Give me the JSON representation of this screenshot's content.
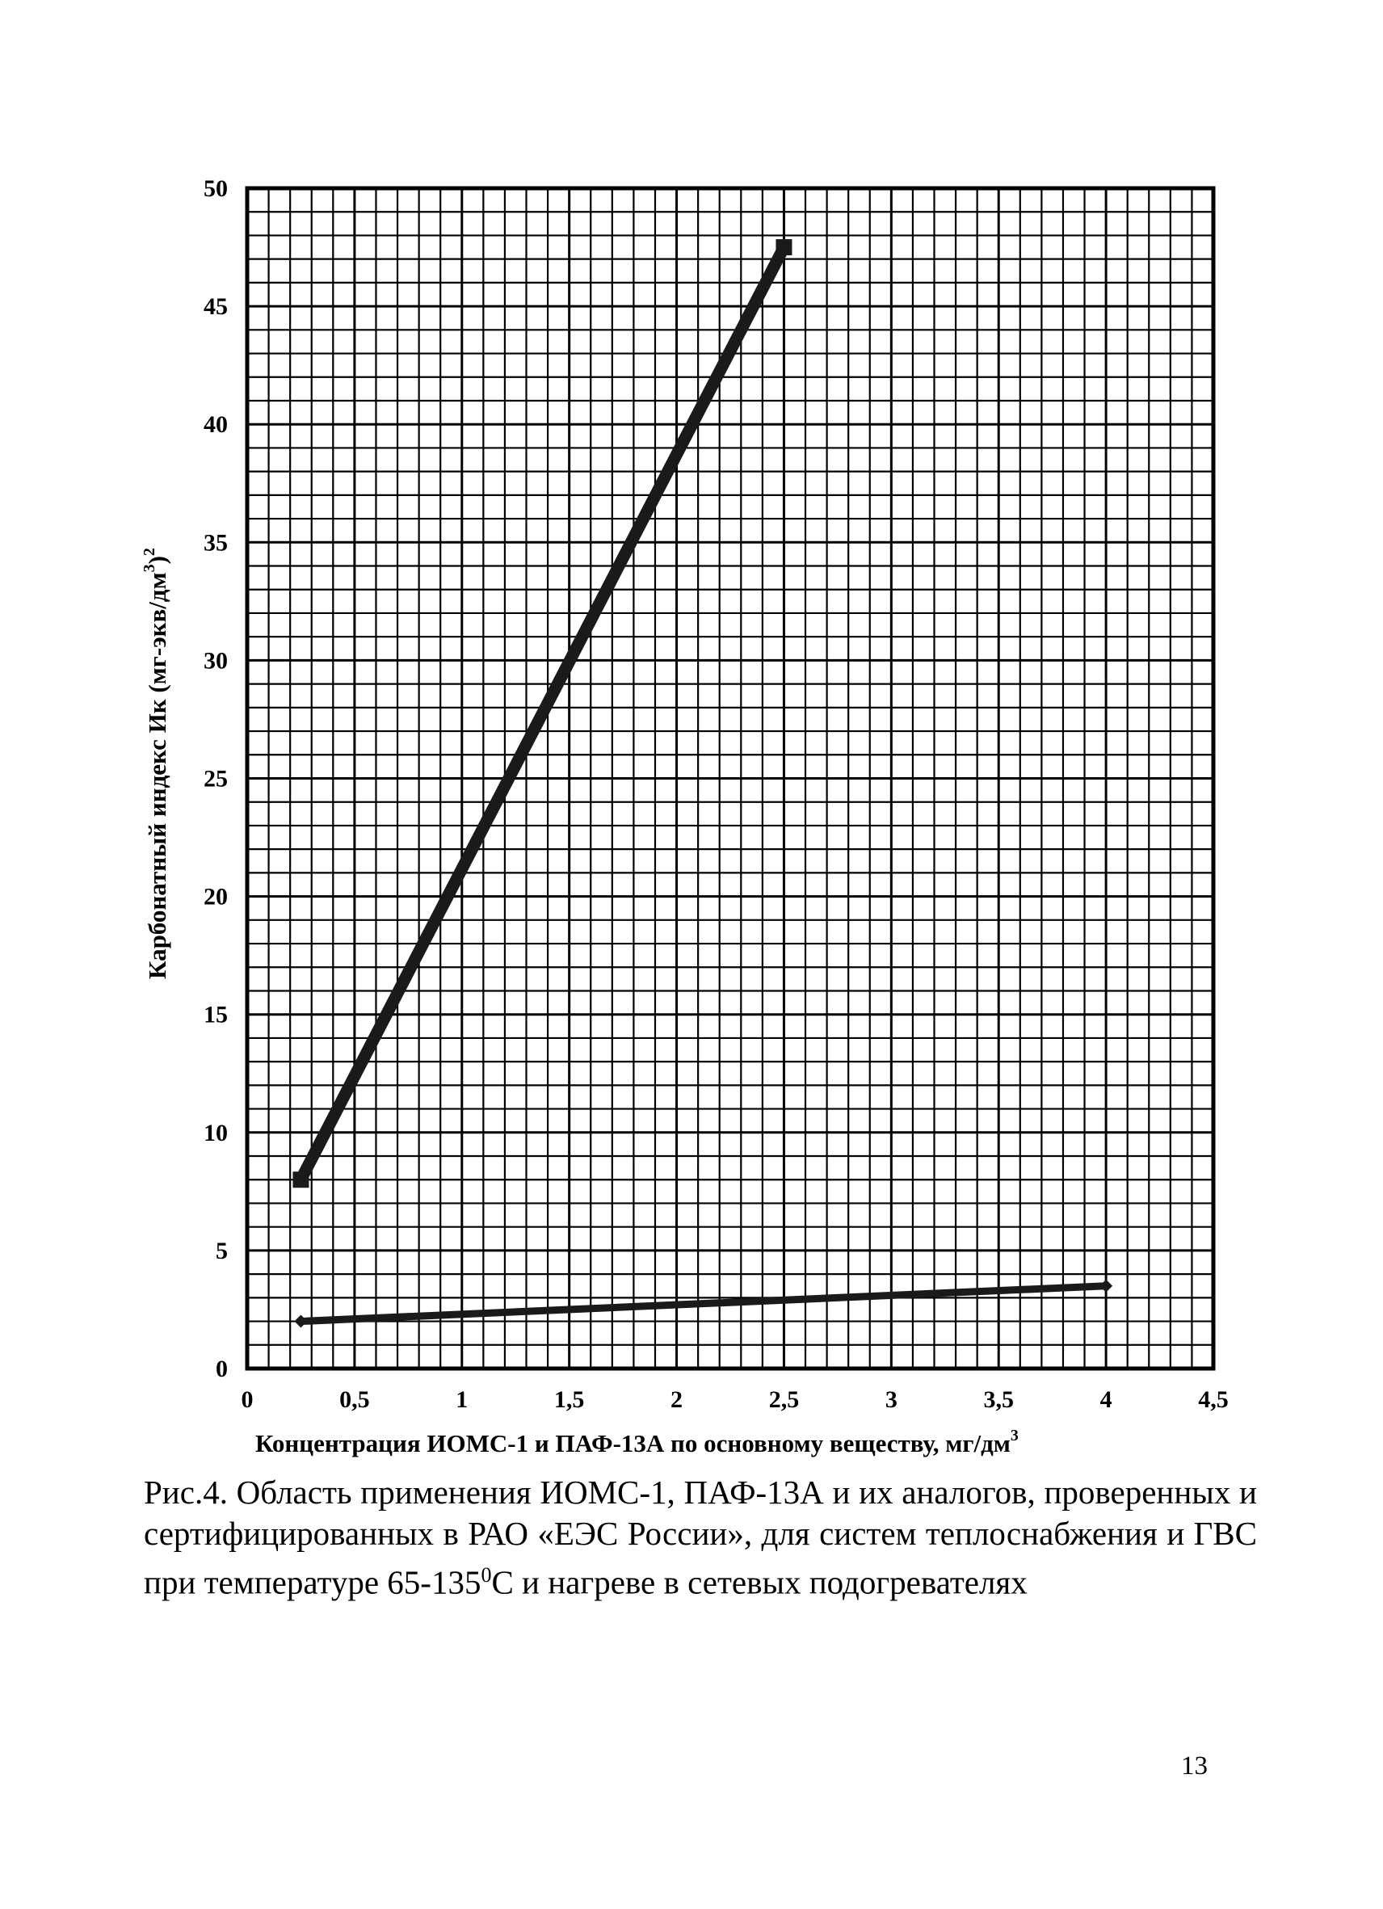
{
  "chart_data": {
    "type": "line",
    "xlim": [
      0,
      4.5
    ],
    "ylim": [
      0,
      50
    ],
    "x_ticks": [
      "0",
      "0,5",
      "1",
      "1,5",
      "2",
      "2,5",
      "3",
      "3,5",
      "4",
      "4,5"
    ],
    "y_ticks": [
      "0",
      "5",
      "10",
      "15",
      "20",
      "25",
      "30",
      "35",
      "40",
      "45",
      "50"
    ],
    "ylabel": "Карбонатный индекс Ик (мг-экв/дм",
    "ylabel_sup1": "3",
    "ylabel_mid": ")",
    "ylabel_sup2": "2",
    "xlabel": "Концентрация ИОМС-1 и ПАФ-13А по основному веществу, мг/дм",
    "xlabel_sup": "3",
    "grid": true,
    "series": [
      {
        "points": [
          [
            0.25,
            8
          ],
          [
            2.5,
            47.5
          ]
        ],
        "marker": "square",
        "color": "#1a1a1a"
      },
      {
        "points": [
          [
            0.25,
            2
          ],
          [
            4,
            3.5
          ]
        ],
        "marker": "diamond",
        "color": "#1a1a1a"
      }
    ]
  },
  "caption": {
    "text_before_sup": "Рис.4. Область применения ИОМС-1, ПАФ-13А и их аналогов, проверенных и сертифицированных в РАО «ЕЭС России», для систем теплоснабжения и ГВС при температуре 65-135",
    "sup": "0",
    "text_after_sup": "С и нагреве в сетевых подогревателях"
  },
  "page_number": "13"
}
